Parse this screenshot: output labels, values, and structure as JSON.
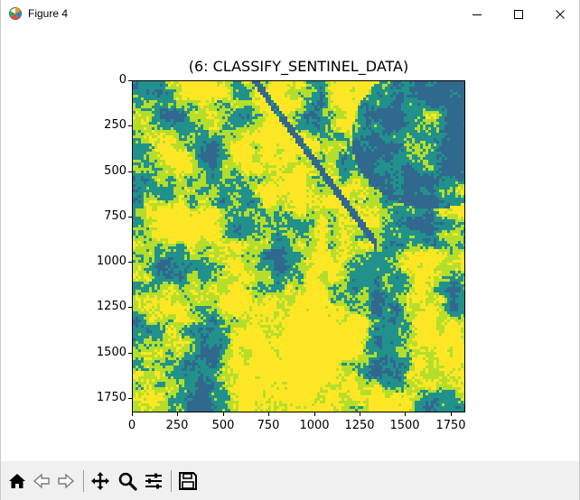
{
  "window": {
    "title": "Figure 4",
    "icons": {
      "app": "matplotlib-figure-icon",
      "minimize": "minimize-icon",
      "maximize": "maximize-icon",
      "close": "close-icon"
    }
  },
  "toolbar": {
    "tools": [
      "home-icon",
      "back-arrow-icon",
      "forward-arrow-icon",
      "pan-move-icon",
      "zoom-magnifier-icon",
      "configure-subplots-icon",
      "save-floppy-icon"
    ]
  },
  "chart_data": {
    "type": "heatmap",
    "title": "(6: CLASSIFY_SENTINEL_DATA)",
    "xlabel": "",
    "ylabel": "",
    "xlim": [
      0,
      1830
    ],
    "ylim": [
      1830,
      0
    ],
    "xticks": [
      "0",
      "250",
      "500",
      "750",
      "1000",
      "1250",
      "1500",
      "1750"
    ],
    "yticks": [
      "0",
      "250",
      "500",
      "750",
      "1000",
      "1250",
      "1500",
      "1750"
    ],
    "colormap": "viridis",
    "colors": {
      "high": "#fde725",
      "mid_high": "#b5de2b",
      "mid": "#21918c",
      "low": "#31688e",
      "lowest": "#440154"
    },
    "grid": false,
    "legend": "none"
  }
}
